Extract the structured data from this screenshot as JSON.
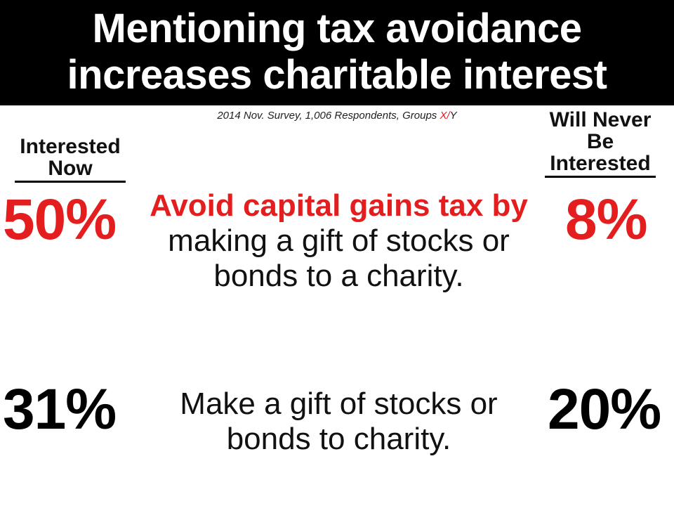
{
  "title": {
    "line1": "Mentioning tax avoidance",
    "line2": "increases charitable interest"
  },
  "subtitle": {
    "prefix": "2014 Nov. Survey, 1,006 Respondents, Groups ",
    "group_x": "X",
    "slash": "/",
    "group_y": "Y"
  },
  "columns": {
    "left_header_line1": "Interested",
    "left_header_line2": "Now",
    "right_header_line1": "Will Never",
    "right_header_line2": "Be",
    "right_header_line3": "Interested"
  },
  "rows": [
    {
      "interested_now": "50%",
      "statement_emphasis": "Avoid capital gains tax by",
      "statement_rest": " making a gift of stocks or bonds to a charity.",
      "never_interested": "8%"
    },
    {
      "interested_now": "31%",
      "statement": "Make a gift of stocks or bonds to charity.",
      "never_interested": "20%"
    }
  ],
  "colors": {
    "accent": "#e41e1e",
    "title_background": "#000000",
    "title_text": "#ffffff"
  }
}
